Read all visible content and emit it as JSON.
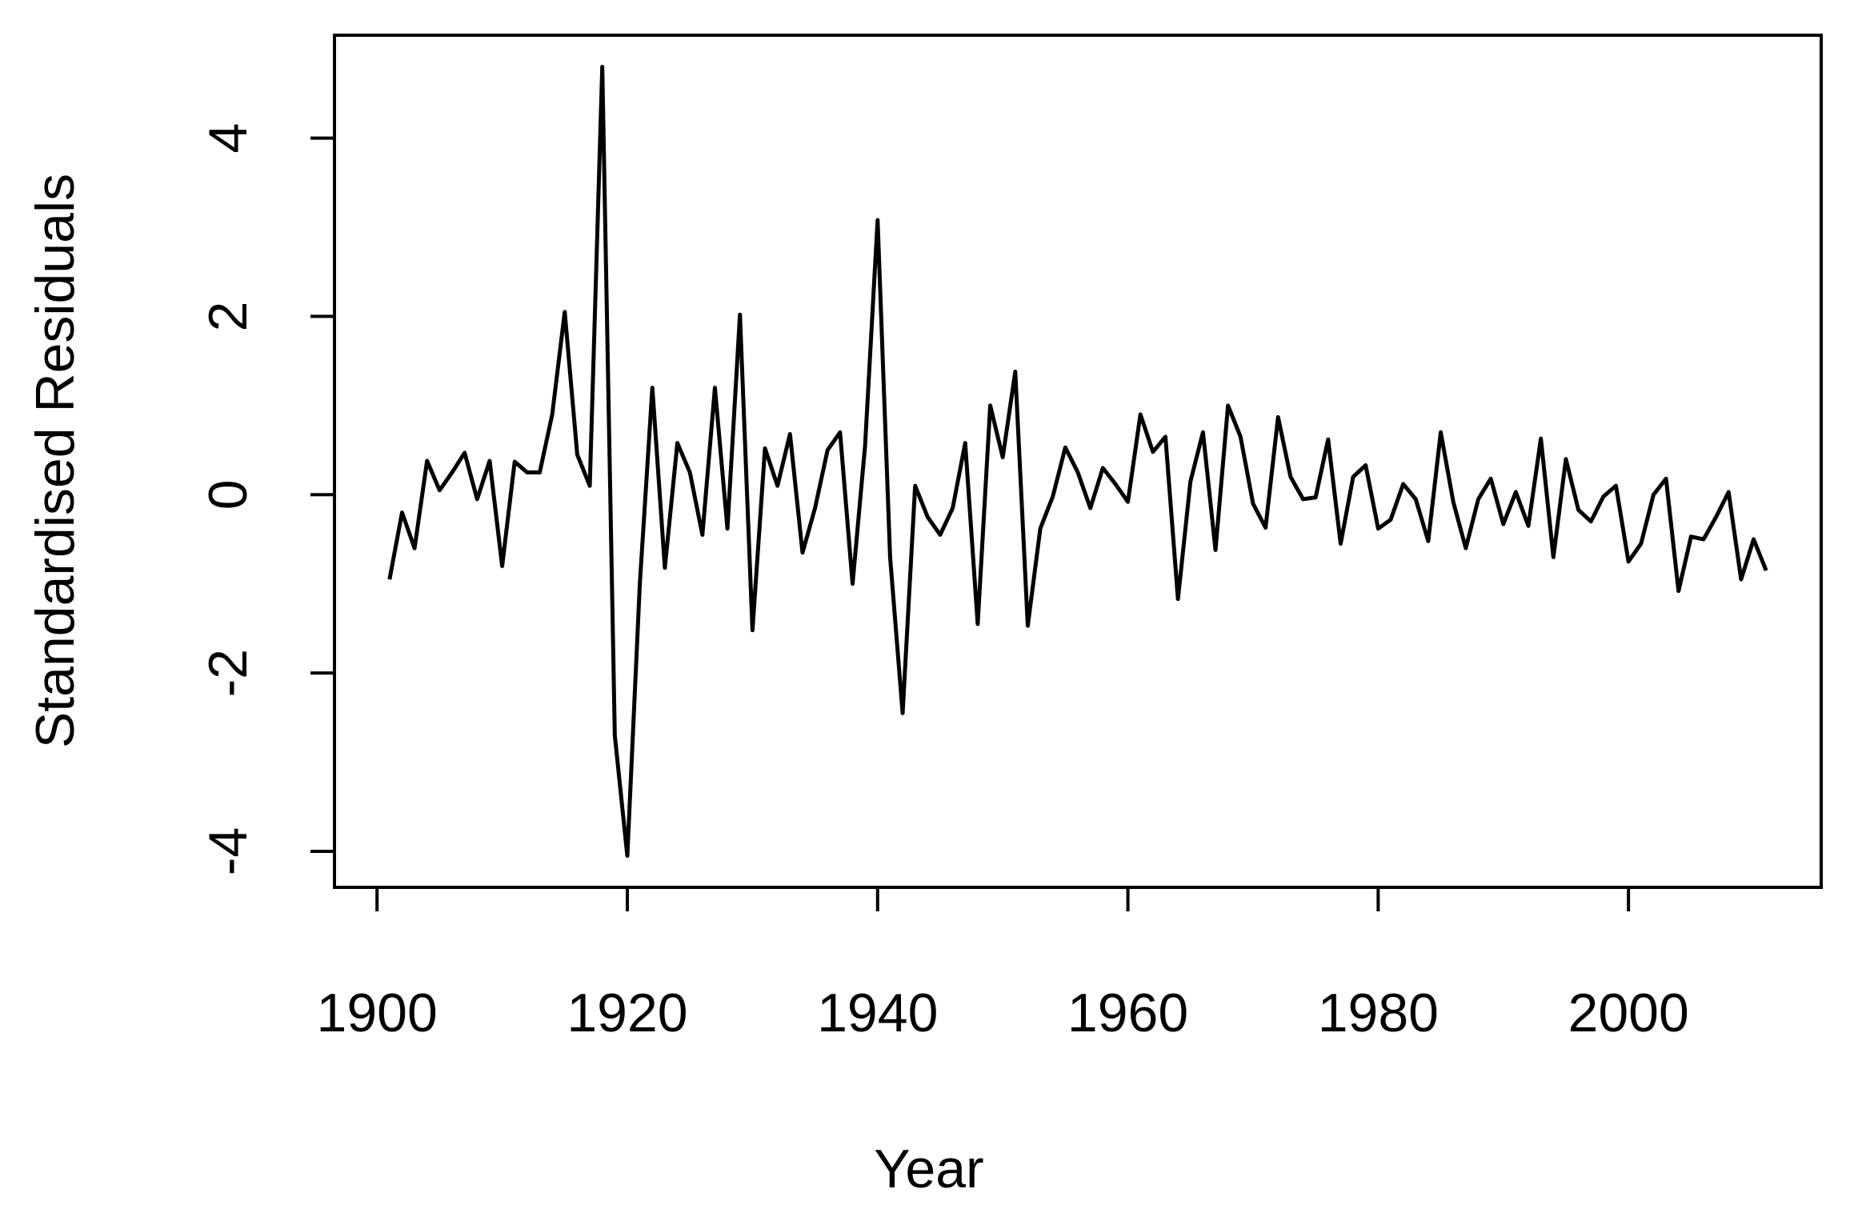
{
  "chart_data": {
    "type": "line",
    "xlabel": "Year",
    "ylabel": "Standardised Residuals",
    "x": [
      1901,
      1902,
      1903,
      1904,
      1905,
      1906,
      1907,
      1908,
      1909,
      1910,
      1911,
      1912,
      1913,
      1914,
      1915,
      1916,
      1917,
      1918,
      1919,
      1920,
      1921,
      1922,
      1923,
      1924,
      1925,
      1926,
      1927,
      1928,
      1929,
      1930,
      1931,
      1932,
      1933,
      1934,
      1935,
      1936,
      1937,
      1938,
      1939,
      1940,
      1941,
      1942,
      1943,
      1944,
      1945,
      1946,
      1947,
      1948,
      1949,
      1950,
      1951,
      1952,
      1953,
      1954,
      1955,
      1956,
      1957,
      1958,
      1959,
      1960,
      1961,
      1962,
      1963,
      1964,
      1965,
      1966,
      1967,
      1968,
      1969,
      1970,
      1971,
      1972,
      1973,
      1974,
      1975,
      1976,
      1977,
      1978,
      1979,
      1980,
      1981,
      1982,
      1983,
      1984,
      1985,
      1986,
      1987,
      1988,
      1989,
      1990,
      1991,
      1992,
      1993,
      1994,
      1995,
      1996,
      1997,
      1998,
      1999,
      2000,
      2001,
      2002,
      2003,
      2004,
      2005,
      2006,
      2007,
      2008,
      2009,
      2010,
      2011
    ],
    "values": [
      -0.95,
      -0.2,
      -0.6,
      0.38,
      0.05,
      0.25,
      0.47,
      -0.05,
      0.38,
      -0.8,
      0.37,
      0.25,
      0.25,
      0.9,
      2.05,
      0.45,
      0.1,
      4.8,
      -2.7,
      -4.05,
      -1.0,
      1.2,
      -0.82,
      0.58,
      0.25,
      -0.45,
      1.2,
      -0.38,
      2.02,
      -1.52,
      0.52,
      0.1,
      0.68,
      -0.65,
      -0.15,
      0.5,
      0.7,
      -1.0,
      0.55,
      3.08,
      -0.7,
      -2.45,
      0.1,
      -0.25,
      -0.45,
      -0.15,
      0.58,
      -1.45,
      1.0,
      0.42,
      1.38,
      -1.47,
      -0.38,
      -0.02,
      0.53,
      0.25,
      -0.15,
      0.3,
      0.12,
      -0.08,
      0.9,
      0.48,
      0.65,
      -1.17,
      0.15,
      0.7,
      -0.62,
      1.0,
      0.65,
      -0.1,
      -0.37,
      0.87,
      0.2,
      -0.05,
      -0.03,
      0.62,
      -0.55,
      0.2,
      0.33,
      -0.38,
      -0.28,
      0.12,
      -0.05,
      -0.52,
      0.7,
      -0.08,
      -0.6,
      -0.05,
      0.18,
      -0.33,
      0.03,
      -0.35,
      0.63,
      -0.7,
      0.4,
      -0.17,
      -0.3,
      -0.02,
      0.1,
      -0.75,
      -0.55,
      0.0,
      0.18,
      -1.08,
      -0.47,
      -0.5,
      -0.25,
      0.03,
      -0.95,
      -0.5,
      -0.85
    ],
    "color": "#000000",
    "xlim": [
      1896.6,
      2015.4
    ],
    "xticks": [
      1900,
      1920,
      1940,
      1960,
      1980,
      2000
    ],
    "ylim": [
      -4.404,
      5.154
    ],
    "yticks": [
      -4,
      -2,
      0,
      2,
      4
    ]
  }
}
